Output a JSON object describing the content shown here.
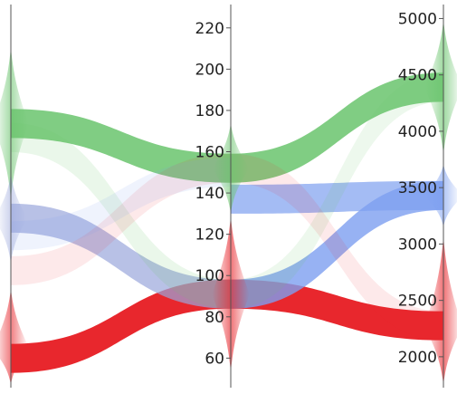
{
  "chart_data": {
    "type": "parallel-coordinates",
    "axes": [
      {
        "ticks": []
      },
      {
        "ticks": [
          60,
          80,
          100,
          120,
          140,
          160,
          180,
          200,
          220
        ],
        "range": [
          47,
          230
        ]
      },
      {
        "ticks": [
          2000,
          2500,
          3000,
          3500,
          4000,
          4500,
          5000
        ],
        "range": [
          1750,
          5100
        ]
      }
    ],
    "tick_labels": {
      "axis2": [
        "60",
        "80",
        "100",
        "120",
        "140",
        "160",
        "180",
        "200",
        "220"
      ],
      "axis3": [
        "2000",
        "2500",
        "3000",
        "3500",
        "4000",
        "4500",
        "5000"
      ]
    },
    "groups": [
      {
        "color": "#e8272d",
        "main": [
          0.05,
          91,
          2275
        ]
      },
      {
        "color": "#6ac46d",
        "main": [
          0.72,
          152,
          4390
        ]
      },
      {
        "color": "#9aa7dc",
        "main": [
          0.45,
          null,
          null
        ]
      },
      {
        "color": "#7d9ff0",
        "main": [
          null,
          137,
          3430
        ]
      }
    ],
    "ribbons": [
      {
        "group": 0,
        "from": [
          0,
          0.05
        ],
        "to": [
          1,
          91
        ],
        "opacity": 1
      },
      {
        "group": 0,
        "from": [
          1,
          91
        ],
        "to": [
          2,
          2275
        ],
        "opacity": 1
      },
      {
        "group": 1,
        "from": [
          0,
          0.72
        ],
        "to": [
          1,
          152
        ],
        "opacity": 0.85
      },
      {
        "group": 1,
        "from": [
          1,
          152
        ],
        "to": [
          2,
          4390
        ],
        "opacity": 0.85
      },
      {
        "group": 2,
        "from": [
          0,
          0.45
        ],
        "to": [
          1,
          91
        ],
        "opacity": 0.7
      },
      {
        "group": 3,
        "from": [
          1,
          137
        ],
        "to": [
          2,
          3430
        ],
        "opacity": 0.7
      },
      {
        "group": 3,
        "from": [
          1,
          91
        ],
        "to": [
          2,
          3430
        ],
        "opacity": 0.8
      },
      {
        "group": 1,
        "from": [
          0,
          0.68
        ],
        "to": [
          1,
          91
        ],
        "opacity": 0.14
      },
      {
        "group": 0,
        "from": [
          0,
          0.3
        ],
        "to": [
          1,
          152
        ],
        "opacity": 0.1
      },
      {
        "group": 3,
        "from": [
          0,
          0.4
        ],
        "to": [
          1,
          150
        ],
        "opacity": 0.12
      },
      {
        "group": 1,
        "from": [
          1,
          91
        ],
        "to": [
          2,
          4390
        ],
        "opacity": 0.12
      },
      {
        "group": 0,
        "from": [
          1,
          152
        ],
        "to": [
          2,
          2275
        ],
        "opacity": 0.1
      }
    ],
    "density": [
      {
        "axis": 0,
        "group": 1,
        "center": 0.72,
        "spread": 0.22,
        "peak": 0.6
      },
      {
        "axis": 0,
        "group": 2,
        "center": 0.45,
        "spread": 0.13,
        "peak": 0.5
      },
      {
        "axis": 0,
        "group": 0,
        "center": 0.08,
        "spread": 0.17,
        "peak": 0.6
      },
      {
        "axis": 1,
        "group": 1,
        "center": 152,
        "spread": 22,
        "peak": 0.6
      },
      {
        "axis": 1,
        "group": 0,
        "center": 91,
        "spread": 38,
        "peak": 0.65
      },
      {
        "axis": 2,
        "group": 1,
        "center": 4390,
        "spread": 600,
        "peak": 0.65
      },
      {
        "axis": 2,
        "group": 3,
        "center": 3430,
        "spread": 280,
        "peak": 0.6
      },
      {
        "axis": 2,
        "group": 0,
        "center": 2275,
        "spread": 800,
        "peak": 0.65
      }
    ],
    "grid": false,
    "legend": "none"
  }
}
